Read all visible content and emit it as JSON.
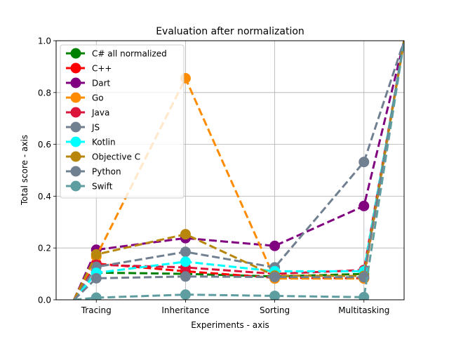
{
  "chart_data": {
    "type": "line",
    "title": "Evaluation after normalization",
    "xlabel": "Experiments - axis",
    "ylabel": "Total score - axis",
    "categories": [
      "Tracing",
      "Inheritance",
      "Sorting",
      "Multitasking"
    ],
    "x_range": [
      -0.45,
      3.45
    ],
    "ylim": [
      0,
      1.0
    ],
    "yticks": [
      0.0,
      0.2,
      0.4,
      0.6,
      0.8,
      1.0
    ],
    "ytick_labels": [
      "0.0",
      "0.2",
      "0.4",
      "0.6",
      "0.8",
      "1.0"
    ],
    "grid": true,
    "legend_position": "upper-left",
    "line_style": "dashed",
    "marker": "circle",
    "lead_in": {
      "x": -0.25,
      "y": 0.0
    },
    "tail_out": {
      "x": 3.45,
      "y": 1.0
    },
    "series": [
      {
        "name": "C# all normalized",
        "color": "#008000",
        "values": [
          0.105,
          0.1,
          0.09,
          0.1
        ]
      },
      {
        "name": "C++",
        "color": "#ff0000",
        "values": [
          0.14,
          0.11,
          0.085,
          0.083
        ]
      },
      {
        "name": "Dart",
        "color": "#800080",
        "values": [
          0.193,
          0.238,
          0.208,
          0.362
        ]
      },
      {
        "name": "Go",
        "color": "#ff8c00",
        "values": [
          0.167,
          0.855,
          0.082,
          0.082
        ]
      },
      {
        "name": "Java",
        "color": "#dc143c",
        "values": [
          0.135,
          0.125,
          0.1,
          0.115
        ]
      },
      {
        "name": "JS",
        "color": "#708090",
        "values": [
          0.127,
          0.185,
          0.125,
          0.532
        ]
      },
      {
        "name": "Kotlin",
        "color": "#00ffff",
        "values": [
          0.104,
          0.147,
          0.11,
          0.11
        ]
      },
      {
        "name": "Objective C",
        "color": "#b8860b",
        "values": [
          0.175,
          0.253,
          0.093,
          0.092
        ]
      },
      {
        "name": "Python",
        "color": "#708090",
        "values": [
          0.083,
          0.09,
          0.088,
          0.087
        ]
      },
      {
        "name": "Swift",
        "color": "#5f9ea0",
        "values": [
          0.008,
          0.02,
          0.015,
          0.01
        ]
      }
    ]
  }
}
